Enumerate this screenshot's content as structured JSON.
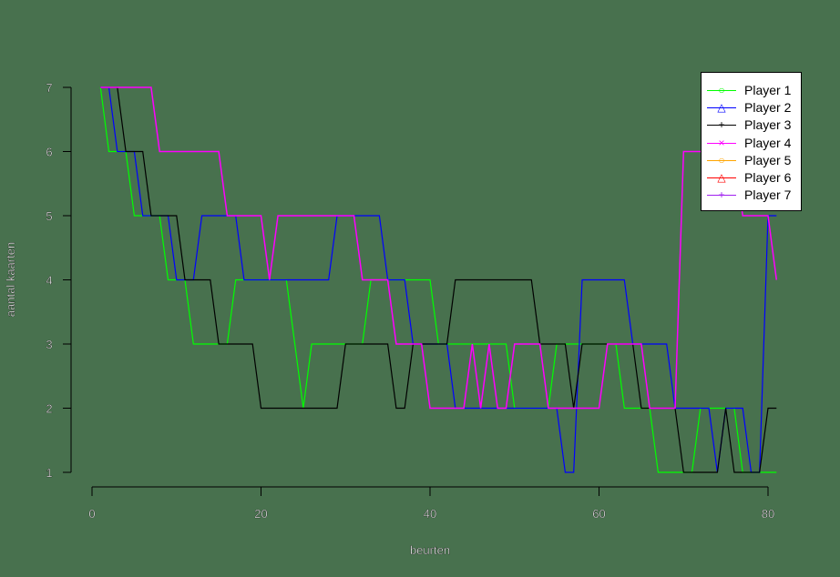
{
  "chart_data": {
    "type": "line",
    "title": "",
    "xlabel": "beurten",
    "ylabel": "aantal kaarten",
    "xlim": [
      0,
      81
    ],
    "ylim": [
      1,
      7
    ],
    "xticks": [
      0,
      20,
      40,
      60,
      80
    ],
    "yticks": [
      1,
      2,
      3,
      4,
      5,
      6,
      7
    ],
    "grid": false,
    "legend_position": "top-right",
    "x": [
      1,
      2,
      3,
      4,
      5,
      6,
      7,
      8,
      9,
      10,
      11,
      12,
      13,
      14,
      15,
      16,
      17,
      18,
      19,
      20,
      21,
      22,
      23,
      24,
      25,
      26,
      27,
      28,
      29,
      30,
      31,
      32,
      33,
      34,
      35,
      36,
      37,
      38,
      39,
      40,
      41,
      42,
      43,
      44,
      45,
      46,
      47,
      48,
      49,
      50,
      51,
      52,
      53,
      54,
      55,
      56,
      57,
      58,
      59,
      60,
      61,
      62,
      63,
      64,
      65,
      66,
      67,
      68,
      69,
      70,
      71,
      72,
      73,
      74,
      75,
      76,
      77,
      78,
      79,
      80,
      81
    ],
    "series": [
      {
        "name": "Player 1",
        "color": "#00ff00",
        "marker": "circle",
        "values": [
          7,
          6,
          6,
          6,
          5,
          5,
          5,
          5,
          4,
          4,
          4,
          3,
          3,
          3,
          3,
          3,
          4,
          4,
          4,
          4,
          4,
          4,
          4,
          3,
          2,
          3,
          3,
          3,
          3,
          3,
          3,
          3,
          4,
          4,
          4,
          4,
          4,
          4,
          4,
          4,
          3,
          3,
          3,
          3,
          3,
          3,
          3,
          3,
          3,
          2,
          2,
          2,
          2,
          2,
          3,
          3,
          3,
          3,
          3,
          3,
          3,
          3,
          2,
          2,
          2,
          2,
          1,
          1,
          1,
          1,
          1,
          2,
          2,
          2,
          2,
          2,
          1,
          1,
          1,
          1,
          1
        ]
      },
      {
        "name": "Player 2",
        "color": "#0000ff",
        "marker": "triangle",
        "values": [
          7,
          7,
          6,
          6,
          6,
          5,
          5,
          5,
          5,
          4,
          4,
          4,
          5,
          5,
          5,
          5,
          5,
          4,
          4,
          4,
          4,
          4,
          4,
          4,
          4,
          4,
          4,
          4,
          5,
          5,
          5,
          5,
          5,
          5,
          4,
          4,
          4,
          3,
          3,
          3,
          3,
          3,
          2,
          2,
          2,
          2,
          2,
          2,
          2,
          2,
          2,
          2,
          2,
          2,
          2,
          1,
          1,
          4,
          4,
          4,
          4,
          4,
          4,
          3,
          3,
          3,
          3,
          3,
          2,
          2,
          2,
          2,
          2,
          1,
          2,
          2,
          2,
          1,
          1,
          5,
          5
        ]
      },
      {
        "name": "Player 3",
        "color": "#000000",
        "marker": "plus",
        "values": [
          7,
          7,
          7,
          6,
          6,
          6,
          5,
          5,
          5,
          5,
          4,
          4,
          4,
          4,
          3,
          3,
          3,
          3,
          3,
          2,
          2,
          2,
          2,
          2,
          2,
          2,
          2,
          2,
          2,
          3,
          3,
          3,
          3,
          3,
          3,
          2,
          2,
          3,
          3,
          3,
          3,
          3,
          4,
          4,
          4,
          4,
          4,
          4,
          4,
          4,
          4,
          4,
          3,
          3,
          3,
          3,
          2,
          3,
          3,
          3,
          3,
          3,
          3,
          3,
          2,
          2,
          2,
          2,
          2,
          1,
          1,
          1,
          1,
          1,
          2,
          1,
          1,
          1,
          1,
          2,
          2
        ]
      },
      {
        "name": "Player 4",
        "color": "#ff00ff",
        "marker": "x",
        "values": [
          7,
          7,
          7,
          7,
          7,
          7,
          7,
          6,
          6,
          6,
          6,
          6,
          6,
          6,
          6,
          5,
          5,
          5,
          5,
          5,
          4,
          5,
          5,
          5,
          5,
          5,
          5,
          5,
          5,
          5,
          5,
          4,
          4,
          4,
          4,
          3,
          3,
          3,
          3,
          2,
          2,
          2,
          2,
          2,
          3,
          2,
          3,
          2,
          2,
          3,
          3,
          3,
          3,
          2,
          2,
          2,
          2,
          2,
          2,
          2,
          3,
          3,
          3,
          3,
          3,
          2,
          2,
          2,
          2,
          6,
          6,
          6,
          6,
          6,
          6,
          6,
          5,
          5,
          5,
          5,
          4
        ]
      },
      {
        "name": "Player 5",
        "color": "#ffa500",
        "marker": "circle",
        "values": []
      },
      {
        "name": "Player 6",
        "color": "#ff0000",
        "marker": "triangle",
        "values": []
      },
      {
        "name": "Player 7",
        "color": "#a020f0",
        "marker": "plus",
        "values": []
      }
    ]
  },
  "axes": {
    "xlabel": "beurten",
    "ylabel": "aantal kaarten",
    "xtick_labels": [
      "0",
      "20",
      "40",
      "60",
      "80"
    ],
    "ytick_labels": [
      "1",
      "2",
      "3",
      "4",
      "5",
      "6",
      "7"
    ]
  },
  "legend": {
    "items": [
      {
        "label": "Player 1",
        "color": "#00ff00",
        "glyph": "○"
      },
      {
        "label": "Player 2",
        "color": "#0000ff",
        "glyph": "△"
      },
      {
        "label": "Player 3",
        "color": "#000000",
        "glyph": "+"
      },
      {
        "label": "Player 4",
        "color": "#ff00ff",
        "glyph": "×"
      },
      {
        "label": "Player 5",
        "color": "#ffa500",
        "glyph": "○"
      },
      {
        "label": "Player 6",
        "color": "#ff0000",
        "glyph": "△"
      },
      {
        "label": "Player 7",
        "color": "#a020f0",
        "glyph": "+"
      }
    ]
  },
  "colors": {
    "background": "#48714e",
    "axis": "#000000"
  }
}
